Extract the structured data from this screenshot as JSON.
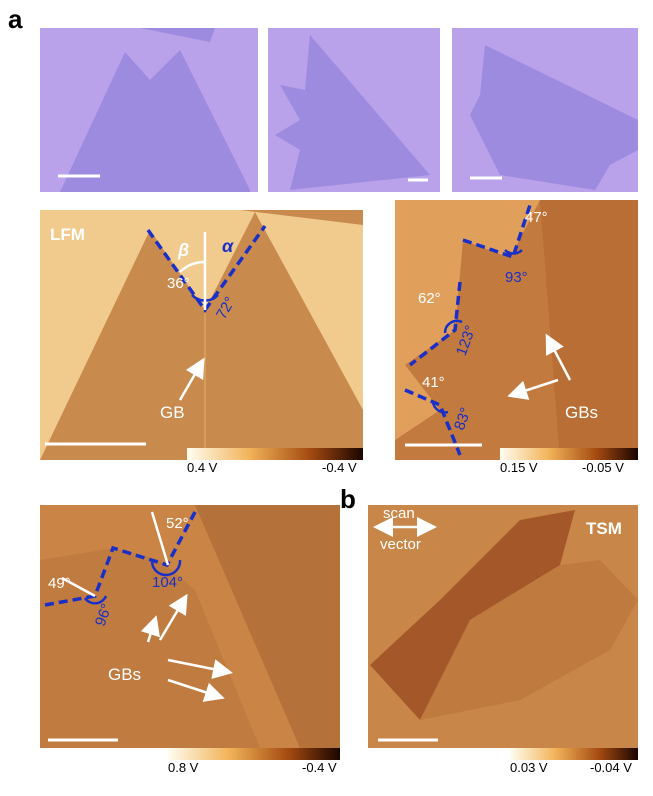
{
  "panel_a": {
    "label": "a",
    "lfm": {
      "tag": "LFM",
      "angles": [
        "β",
        "α",
        "36°",
        "72°"
      ],
      "gb": "GB",
      "colorbar": [
        "0.4 V",
        "-0.4 V"
      ]
    },
    "right": {
      "angles": [
        "47°",
        "93°",
        "62°",
        "123°",
        "41°",
        "83°"
      ],
      "gbs": "GBs",
      "colorbar": [
        "0.15 V",
        "-0.05 V"
      ]
    },
    "bottom": {
      "angles": [
        "52°",
        "49°",
        "96°",
        "104°"
      ],
      "gbs": "GBs",
      "colorbar": [
        "0.8 V",
        "-0.4 V"
      ]
    }
  },
  "panel_b": {
    "label": "b",
    "tag": "TSM",
    "scan_vector": [
      "scan",
      "vector"
    ],
    "colorbar": [
      "0.03 V",
      "-0.04 V"
    ]
  }
}
